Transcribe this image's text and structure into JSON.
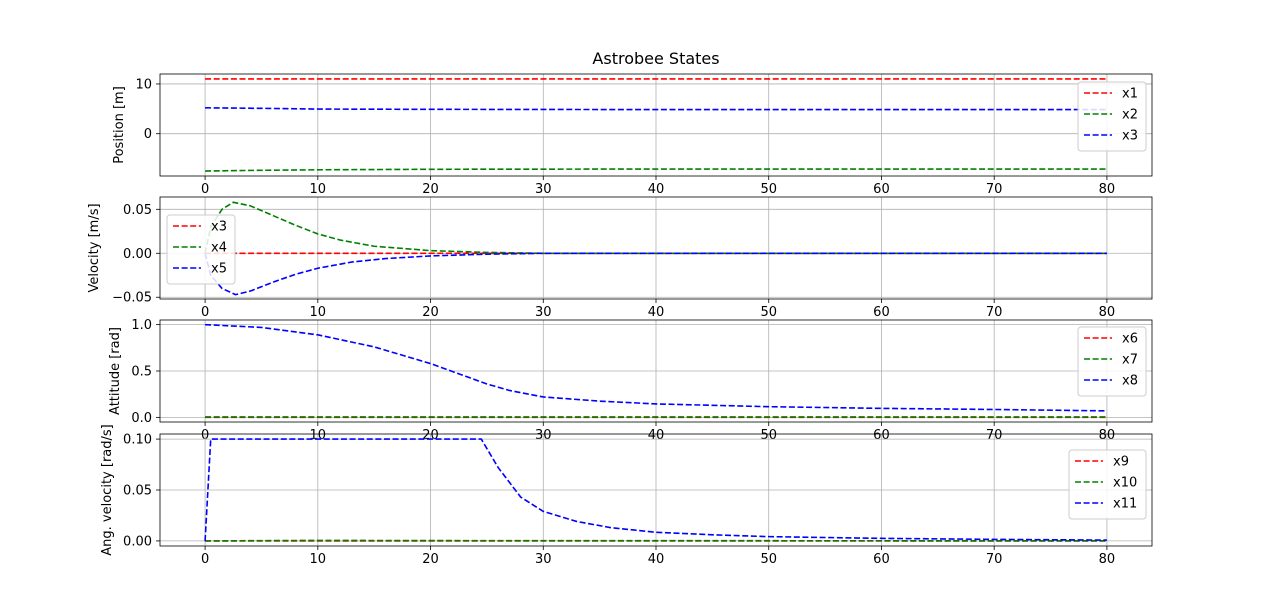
{
  "title": "Astrobee States",
  "chart_data": [
    {
      "type": "line",
      "ylabel": "Position [m]",
      "xlim": [
        -4,
        84
      ],
      "ylim": [
        -8.5,
        12
      ],
      "xticks": [
        0,
        10,
        20,
        30,
        40,
        50,
        60,
        70,
        80
      ],
      "yticks": [
        10,
        0
      ],
      "ytick_labels": [
        "10",
        "0"
      ],
      "grid": true,
      "legend_position": "upper right",
      "series": [
        {
          "name": "x1",
          "color": "#ff0000",
          "points": [
            [
              0,
              11
            ],
            [
              80,
              11
            ]
          ]
        },
        {
          "name": "x2",
          "color": "#008000",
          "points": [
            [
              0,
              -7.5
            ],
            [
              5,
              -7.35
            ],
            [
              10,
              -7.25
            ],
            [
              20,
              -7.15
            ],
            [
              40,
              -7.1
            ],
            [
              80,
              -7.1
            ]
          ]
        },
        {
          "name": "x3",
          "color": "#0000ff",
          "points": [
            [
              0,
              5.2
            ],
            [
              5,
              5.1
            ],
            [
              10,
              4.95
            ],
            [
              20,
              4.9
            ],
            [
              40,
              4.85
            ],
            [
              80,
              4.85
            ]
          ]
        }
      ]
    },
    {
      "type": "line",
      "ylabel": "Velocity [m/s]",
      "xlim": [
        -4,
        84
      ],
      "ylim": [
        -0.052,
        0.064
      ],
      "xticks": [
        0,
        10,
        20,
        30,
        40,
        50,
        60,
        70,
        80
      ],
      "yticks": [
        0.05,
        0.0,
        -0.05
      ],
      "ytick_labels": [
        "0.05",
        "0.00",
        "−0.05"
      ],
      "grid": true,
      "legend_position": "upper left",
      "series": [
        {
          "name": "x3",
          "color": "#ff0000",
          "points": [
            [
              0,
              0
            ],
            [
              80,
              0
            ]
          ]
        },
        {
          "name": "x4",
          "color": "#008000",
          "points": [
            [
              0,
              0
            ],
            [
              0.5,
              0.03
            ],
            [
              1.5,
              0.05
            ],
            [
              2.5,
              0.058
            ],
            [
              4,
              0.054
            ],
            [
              6,
              0.043
            ],
            [
              8,
              0.032
            ],
            [
              10,
              0.022
            ],
            [
              12,
              0.015
            ],
            [
              15,
              0.008
            ],
            [
              20,
              0.003
            ],
            [
              25,
              0.001
            ],
            [
              30,
              0.0
            ],
            [
              80,
              0.0
            ]
          ]
        },
        {
          "name": "x5",
          "color": "#0000ff",
          "points": [
            [
              0,
              0
            ],
            [
              0.5,
              -0.025
            ],
            [
              1.5,
              -0.04
            ],
            [
              2.7,
              -0.047
            ],
            [
              4,
              -0.043
            ],
            [
              6,
              -0.033
            ],
            [
              8,
              -0.024
            ],
            [
              10,
              -0.017
            ],
            [
              13,
              -0.01
            ],
            [
              16,
              -0.006
            ],
            [
              20,
              -0.003
            ],
            [
              25,
              -0.001
            ],
            [
              30,
              0.0
            ],
            [
              80,
              0.0
            ]
          ]
        }
      ]
    },
    {
      "type": "line",
      "ylabel": "Attitude [rad]",
      "xlim": [
        -4,
        84
      ],
      "ylim": [
        -0.05,
        1.05
      ],
      "xticks": [
        0,
        10,
        20,
        30,
        40,
        50,
        60,
        70,
        80
      ],
      "yticks": [
        1.0,
        0.5,
        0.0
      ],
      "ytick_labels": [
        "1.0",
        "0.5",
        "0.0"
      ],
      "grid": true,
      "legend_position": "upper right",
      "series": [
        {
          "name": "x6",
          "color": "#ff0000",
          "points": [
            [
              0,
              0
            ],
            [
              80,
              0
            ]
          ]
        },
        {
          "name": "x7",
          "color": "#008000",
          "points": [
            [
              0,
              0.005
            ],
            [
              80,
              0.005
            ]
          ]
        },
        {
          "name": "x8",
          "color": "#0000ff",
          "points": [
            [
              0,
              1.0
            ],
            [
              5,
              0.97
            ],
            [
              10,
              0.89
            ],
            [
              15,
              0.76
            ],
            [
              20,
              0.58
            ],
            [
              25,
              0.36
            ],
            [
              27,
              0.29
            ],
            [
              30,
              0.22
            ],
            [
              35,
              0.175
            ],
            [
              40,
              0.145
            ],
            [
              50,
              0.115
            ],
            [
              60,
              0.097
            ],
            [
              70,
              0.085
            ],
            [
              80,
              0.07
            ]
          ]
        }
      ]
    },
    {
      "type": "line",
      "ylabel": "Ang. velocity [rad/s]",
      "xlim": [
        -4,
        84
      ],
      "ylim": [
        -0.005,
        0.105
      ],
      "xticks": [
        0,
        10,
        20,
        30,
        40,
        50,
        60,
        70,
        80
      ],
      "xtick_labels": [
        "0",
        "10",
        "20",
        "30",
        "40",
        "50",
        "60",
        "70",
        "80"
      ],
      "yticks": [
        0.1,
        0.05,
        0.0
      ],
      "ytick_labels": [
        "0.10",
        "0.05",
        "0.00"
      ],
      "grid": true,
      "legend_position": "upper right",
      "series": [
        {
          "name": "x9",
          "color": "#ff0000",
          "points": [
            [
              0,
              0
            ],
            [
              80,
              0
            ]
          ]
        },
        {
          "name": "x10",
          "color": "#008000",
          "points": [
            [
              0,
              0.0
            ],
            [
              10,
              0.0005
            ],
            [
              20,
              0.0003
            ],
            [
              40,
              0.0002
            ],
            [
              80,
              0.0001
            ]
          ]
        },
        {
          "name": "x11",
          "color": "#0000ff",
          "points": [
            [
              0,
              0
            ],
            [
              0.5,
              0.1
            ],
            [
              24.5,
              0.1
            ],
            [
              26,
              0.072
            ],
            [
              28,
              0.043
            ],
            [
              30,
              0.029
            ],
            [
              33,
              0.019
            ],
            [
              36,
              0.013
            ],
            [
              40,
              0.0085
            ],
            [
              45,
              0.006
            ],
            [
              50,
              0.0042
            ],
            [
              60,
              0.0025
            ],
            [
              70,
              0.0015
            ],
            [
              80,
              0.0008
            ]
          ]
        }
      ]
    }
  ]
}
